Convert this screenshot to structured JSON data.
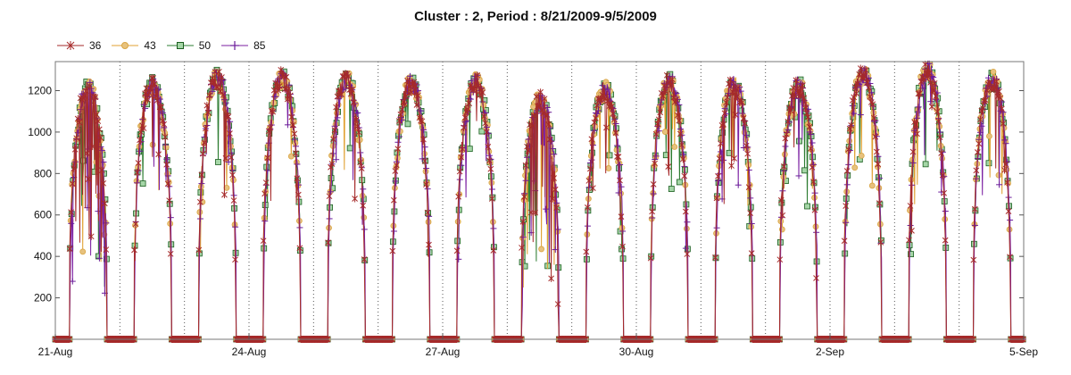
{
  "chart_data": {
    "type": "line",
    "title": "Cluster : 2, Period : 8/21/2009-9/5/2009",
    "xlabel": "",
    "ylabel": "",
    "x_ticks": [
      "21-Aug",
      "24-Aug",
      "27-Aug",
      "30-Aug",
      "2-Sep",
      "5-Sep"
    ],
    "x_range": [
      "2009-08-21",
      "2009-09-05"
    ],
    "y_ticks": [
      200,
      400,
      600,
      800,
      1000,
      1200
    ],
    "ylim": [
      0,
      1340
    ],
    "grid": "vertical dotted lines at day boundaries",
    "legend_position": "top-left",
    "series": [
      {
        "name": "36",
        "marker": "asterisk",
        "color": "#a52a2a"
      },
      {
        "name": "43",
        "marker": "circle",
        "color": "#e7b35a"
      },
      {
        "name": "50",
        "marker": "square",
        "color": "#2e7d32"
      },
      {
        "name": "85",
        "marker": "plus",
        "color": "#7b1fa2"
      }
    ],
    "daily_series_peak": [
      {
        "date": "2009-08-21",
        "peak": 1210,
        "note": "cloudy, drops mid-day"
      },
      {
        "date": "2009-08-22",
        "peak": 1230
      },
      {
        "date": "2009-08-23",
        "peak": 1260
      },
      {
        "date": "2009-08-24",
        "peak": 1260
      },
      {
        "date": "2009-08-25",
        "peak": 1250
      },
      {
        "date": "2009-08-26",
        "peak": 1230
      },
      {
        "date": "2009-08-27",
        "peak": 1240
      },
      {
        "date": "2009-08-28",
        "peak": 1150,
        "note": "cloudy"
      },
      {
        "date": "2009-08-29",
        "peak": 1200
      },
      {
        "date": "2009-08-30",
        "peak": 1240
      },
      {
        "date": "2009-08-31",
        "peak": 1230
      },
      {
        "date": "2009-09-01",
        "peak": 1220
      },
      {
        "date": "2009-09-02",
        "peak": 1280
      },
      {
        "date": "2009-09-03",
        "peak": 1300
      },
      {
        "date": "2009-09-04",
        "peak": 1250
      }
    ]
  }
}
